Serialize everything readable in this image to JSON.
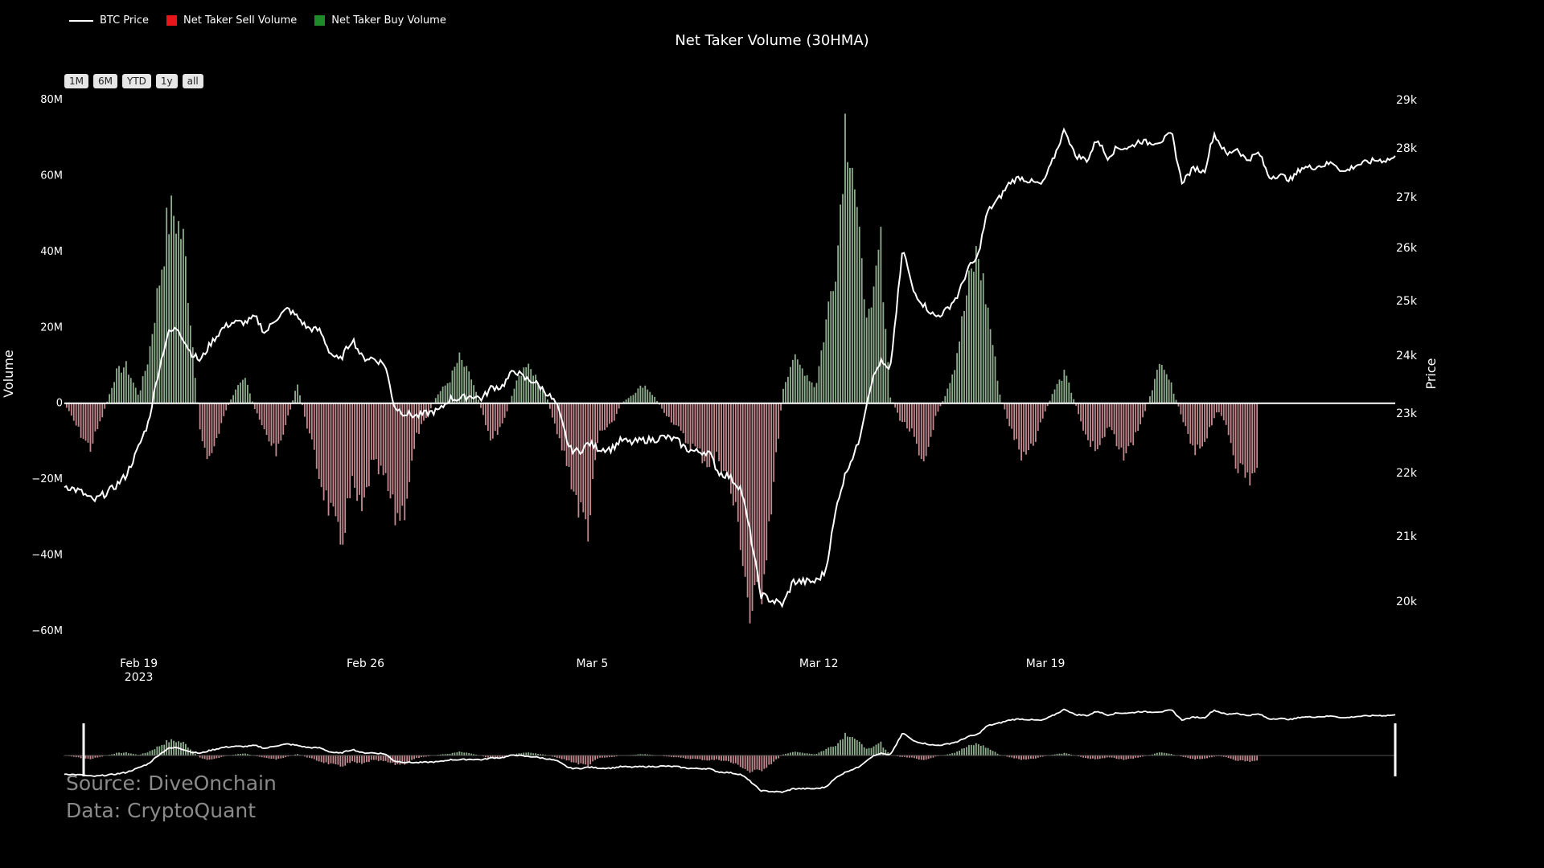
{
  "legend": [
    {
      "label": "BTC Price",
      "type": "line",
      "color": "#ffffff"
    },
    {
      "label": "Net Taker Sell Volume",
      "type": "box",
      "color": "#e8161b"
    },
    {
      "label": "Net Taker Buy Volume",
      "type": "box",
      "color": "#1f8a2a"
    }
  ],
  "range_buttons": [
    "1M",
    "6M",
    "YTD",
    "1y",
    "all"
  ],
  "source_lines": [
    "Source: DiveOnchain",
    "Data: CryptoQuant"
  ],
  "colors": {
    "buy": "#8fae8f",
    "sell": "#c48a90",
    "price": "#ffffff",
    "zero": "#ffffff"
  },
  "chart_data": {
    "type": "bar",
    "title": "Net Taker Volume (30HMA)",
    "ylabel": "Volume",
    "y2label": "Price",
    "ylim": [
      -60000000,
      80000000
    ],
    "y_ticks": [
      {
        "value": 80000000,
        "label": "80M"
      },
      {
        "value": 60000000,
        "label": "60M"
      },
      {
        "value": 40000000,
        "label": "40M"
      },
      {
        "value": 20000000,
        "label": "20M"
      },
      {
        "value": 0,
        "label": "0"
      },
      {
        "value": -20000000,
        "label": "−20M"
      },
      {
        "value": -40000000,
        "label": "−40M"
      },
      {
        "value": -60000000,
        "label": "−60M"
      }
    ],
    "y2_ticks": [
      {
        "value": 29000,
        "label": "29k"
      },
      {
        "value": 28000,
        "label": "28k"
      },
      {
        "value": 27000,
        "label": "27k"
      },
      {
        "value": 26000,
        "label": "26k"
      },
      {
        "value": 25000,
        "label": "25k"
      },
      {
        "value": 24000,
        "label": "24k"
      },
      {
        "value": 23000,
        "label": "23k"
      },
      {
        "value": 22000,
        "label": "22k"
      },
      {
        "value": 21000,
        "label": "21k"
      },
      {
        "value": 20000,
        "label": "20k"
      }
    ],
    "x_range_days": [
      14.8,
      25.33
    ],
    "x_ticks": [
      {
        "day": 19,
        "label": "Feb 19",
        "sub": "2023"
      },
      {
        "day": 26,
        "label": "Feb 26",
        "sub": ""
      },
      {
        "day": 33,
        "label": "Mar 5",
        "sub": ""
      },
      {
        "day": 40,
        "label": "Mar 12",
        "sub": ""
      },
      {
        "day": 47,
        "label": "Mar 19",
        "sub": ""
      }
    ],
    "x_domain": [
      16.7,
      57.8
    ],
    "volume_keypoints_x": [
      16.7,
      17.2,
      17.5,
      17.9,
      18.3,
      18.6,
      19.0,
      19.3,
      19.6,
      19.9,
      20.1,
      20.4,
      20.7,
      20.9,
      21.2,
      21.6,
      22.0,
      22.3,
      22.6,
      22.9,
      23.3,
      23.6,
      23.9,
      24.2,
      24.6,
      24.9,
      25.2,
      25.6,
      25.9,
      26.2,
      26.6,
      26.9,
      27.2,
      27.6,
      27.9,
      28.2,
      28.6,
      28.9,
      29.3,
      29.6,
      29.9,
      30.3,
      30.6,
      30.9,
      31.2,
      31.6,
      31.9,
      32.2,
      32.6,
      32.9,
      33.2,
      33.6,
      33.9,
      34.2,
      34.6,
      34.9,
      35.2,
      35.6,
      35.9,
      36.2,
      36.6,
      36.9,
      37.2,
      37.6,
      37.9,
      38.2,
      38.6,
      38.9,
      39.2,
      39.6,
      39.9,
      40.2,
      40.6,
      40.8,
      41.0,
      41.3,
      41.6,
      41.9,
      42.2,
      42.5,
      42.9,
      43.2,
      43.6,
      43.9,
      44.2,
      44.6,
      44.9,
      45.2,
      45.6,
      45.9,
      46.3,
      46.6,
      47.0,
      47.3,
      47.6,
      48.0,
      48.3,
      48.6,
      49.0,
      49.3,
      49.6,
      50.0,
      50.3,
      50.6,
      51.0,
      51.3,
      51.6,
      51.9,
      52.3,
      52.6,
      52.9,
      53.3,
      53.6,
      53.9,
      54.2,
      54.6,
      54.9,
      55.2,
      55.6,
      55.9,
      56.2,
      56.6,
      56.9,
      57.2,
      57.5,
      57.8
    ],
    "volume_keypoints_y": [
      0,
      -8,
      -12,
      -3,
      8,
      10,
      2,
      12,
      30,
      48,
      50,
      42,
      12,
      -8,
      -15,
      -4,
      4,
      6,
      -2,
      -8,
      -13,
      -4,
      5,
      -6,
      -20,
      -28,
      -38,
      -22,
      -30,
      -16,
      -20,
      -30,
      -28,
      -8,
      -4,
      2,
      6,
      12,
      6,
      -2,
      -10,
      -4,
      4,
      10,
      8,
      2,
      -8,
      -15,
      -28,
      -33,
      -8,
      -6,
      0,
      2,
      5,
      2,
      -2,
      -6,
      -10,
      -12,
      -16,
      -14,
      -20,
      -36,
      -58,
      -50,
      -22,
      4,
      12,
      8,
      4,
      20,
      42,
      74,
      70,
      36,
      20,
      44,
      2,
      -4,
      -8,
      -18,
      -4,
      2,
      10,
      30,
      40,
      26,
      2,
      -6,
      -15,
      -12,
      -2,
      4,
      8,
      -2,
      -10,
      -12,
      -6,
      -14,
      -12,
      -4,
      4,
      12,
      2,
      -6,
      -14,
      -10,
      -2,
      -6,
      -16,
      -20,
      -18
    ],
    "price_keypoints_x": [
      16.7,
      17.2,
      17.6,
      17.9,
      18.2,
      18.6,
      18.9,
      19.3,
      19.6,
      19.9,
      20.2,
      20.6,
      20.9,
      21.2,
      21.6,
      21.9,
      22.3,
      22.6,
      22.9,
      23.2,
      23.6,
      23.9,
      24.2,
      24.6,
      24.9,
      25.2,
      25.6,
      25.9,
      26.2,
      26.6,
      26.9,
      27.2,
      27.6,
      27.9,
      28.3,
      28.6,
      28.9,
      29.3,
      29.6,
      29.9,
      30.2,
      30.6,
      30.9,
      31.2,
      31.6,
      31.9,
      32.3,
      32.6,
      32.9,
      33.2,
      33.6,
      33.9,
      34.2,
      34.6,
      34.9,
      35.2,
      35.6,
      35.9,
      36.2,
      36.6,
      36.9,
      37.2,
      37.6,
      37.9,
      38.2,
      38.6,
      38.9,
      39.2,
      39.6,
      39.9,
      40.2,
      40.6,
      40.9,
      41.2,
      41.6,
      41.9,
      42.2,
      42.6,
      42.9,
      43.2,
      43.6,
      43.9,
      44.3,
      44.6,
      44.9,
      45.2,
      45.6,
      45.9,
      46.2,
      46.6,
      46.9,
      47.2,
      47.6,
      47.9,
      48.3,
      48.6,
      48.9,
      49.2,
      49.6,
      49.9,
      50.2,
      50.6,
      50.9,
      51.2,
      51.6,
      51.9,
      52.2,
      52.6,
      52.9,
      53.2,
      53.6,
      53.9,
      54.2,
      54.6,
      54.9,
      55.2,
      55.6,
      55.9,
      56.2,
      56.6,
      56.9,
      57.2,
      57.5,
      57.8
    ],
    "price_keypoints_y": [
      21800,
      21700,
      21550,
      21650,
      21750,
      21950,
      22300,
      22850,
      23700,
      24400,
      24500,
      24050,
      23900,
      24200,
      24500,
      24600,
      24600,
      24700,
      24400,
      24650,
      24850,
      24700,
      24500,
      24450,
      24050,
      23900,
      24300,
      23950,
      23950,
      23850,
      23100,
      23000,
      22950,
      23000,
      23050,
      23250,
      23250,
      23300,
      23250,
      23450,
      23450,
      23750,
      23600,
      23550,
      23350,
      23150,
      22400,
      22350,
      22500,
      22400,
      22400,
      22550,
      22500,
      22550,
      22550,
      22600,
      22550,
      22400,
      22350,
      22350,
      22000,
      21950,
      21750,
      21000,
      20100,
      20000,
      19950,
      20300,
      20300,
      20300,
      20450,
      21600,
      22100,
      22450,
      23500,
      23900,
      23700,
      26000,
      25200,
      24950,
      24700,
      24800,
      25100,
      25600,
      25800,
      26700,
      27000,
      27300,
      27400,
      27300,
      27250,
      27700,
      28400,
      27850,
      27750,
      28200,
      27800,
      28000,
      28000,
      28150,
      28100,
      28150,
      28300,
      27300,
      27600,
      27500,
      28300,
      27850,
      28000,
      27750,
      27900,
      27400,
      27450,
      27350,
      27600,
      27600,
      27650,
      27700,
      27500,
      27650,
      27700,
      27750,
      27750,
      27800
    ]
  }
}
